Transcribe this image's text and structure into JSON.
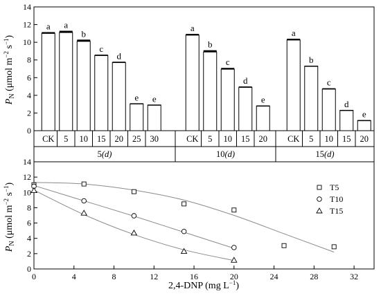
{
  "chart_data": [
    {
      "type": "bar",
      "ylabel": {
        "main": "P",
        "sub": "N",
        "units": "(μmol m",
        "exp1": "−2",
        "mid": " s",
        "exp2": "−1",
        "close": ")"
      },
      "ylim": [
        0,
        14
      ],
      "yticks": [
        0,
        2,
        4,
        6,
        8,
        10,
        12,
        14
      ],
      "groups": [
        {
          "label": "5",
          "unit": "(d)",
          "bars": [
            {
              "category": "CK",
              "value": 11.0,
              "error": 0.15,
              "letter": "a"
            },
            {
              "category": "5",
              "value": 11.1,
              "error": 0.2,
              "letter": "a"
            },
            {
              "category": "10",
              "value": 10.1,
              "error": 0.2,
              "letter": "b"
            },
            {
              "category": "15",
              "value": 8.5,
              "error": 0.1,
              "letter": "c"
            },
            {
              "category": "20",
              "value": 7.7,
              "error": 0.1,
              "letter": "d"
            },
            {
              "category": "25",
              "value": 3.05,
              "error": 0.05,
              "letter": "e"
            },
            {
              "category": "30",
              "value": 2.9,
              "error": 0.05,
              "letter": "e"
            }
          ]
        },
        {
          "label": "10",
          "unit": "(d)",
          "bars": [
            {
              "category": "CK",
              "value": 10.8,
              "error": 0.15,
              "letter": "a"
            },
            {
              "category": "5",
              "value": 8.9,
              "error": 0.2,
              "letter": "b"
            },
            {
              "category": "10",
              "value": 6.95,
              "error": 0.15,
              "letter": "c"
            },
            {
              "category": "15",
              "value": 4.9,
              "error": 0.1,
              "letter": "d"
            },
            {
              "category": "20",
              "value": 2.8,
              "error": 0.05,
              "letter": "e"
            }
          ]
        },
        {
          "label": "15",
          "unit": "(d)",
          "bars": [
            {
              "category": "CK",
              "value": 10.25,
              "error": 0.15,
              "letter": "a"
            },
            {
              "category": "5",
              "value": 7.3,
              "error": 0.05,
              "letter": "b"
            },
            {
              "category": "10",
              "value": 4.7,
              "error": 0.1,
              "letter": "c"
            },
            {
              "category": "15",
              "value": 2.3,
              "error": 0.05,
              "letter": "d"
            },
            {
              "category": "20",
              "value": 1.15,
              "error": 0.05,
              "letter": "e"
            }
          ]
        }
      ]
    },
    {
      "type": "scatter",
      "xlabel": {
        "text": "2,4-DNP",
        "units": "(mg L",
        "exp": "−1",
        "close": ")"
      },
      "ylabel": {
        "main": "P",
        "sub": "N",
        "units": "(μmol m",
        "exp1": "−2",
        "mid": " s",
        "exp2": "−1",
        "close": ")"
      },
      "xlim": [
        0,
        34
      ],
      "ylim": [
        0,
        14
      ],
      "xticks": [
        0,
        4,
        8,
        12,
        16,
        20,
        24,
        28,
        32
      ],
      "yticks": [
        0,
        2,
        4,
        6,
        8,
        10,
        12,
        14
      ],
      "legend_position": "right",
      "series": [
        {
          "name": "T5",
          "marker": "square",
          "x": [
            0,
            5,
            10,
            15,
            20,
            25,
            30
          ],
          "y": [
            11.0,
            11.1,
            10.1,
            8.5,
            7.7,
            3.05,
            2.9
          ],
          "fit": {
            "x": [
              0,
              5,
              10,
              15,
              20,
              25,
              30
            ],
            "y": [
              11.3,
              11.1,
              10.3,
              9.0,
              7.0,
              4.6,
              2.2
            ]
          }
        },
        {
          "name": "T10",
          "marker": "circle",
          "x": [
            0,
            5,
            10,
            15,
            20
          ],
          "y": [
            10.8,
            8.9,
            6.95,
            4.9,
            2.8
          ],
          "fit": {
            "x": [
              0,
              5,
              10,
              15,
              20
            ],
            "y": [
              10.9,
              8.9,
              6.9,
              4.8,
              2.7
            ]
          }
        },
        {
          "name": "T15",
          "marker": "triangle",
          "x": [
            0,
            5,
            10,
            15,
            20
          ],
          "y": [
            10.25,
            7.3,
            4.7,
            2.3,
            1.15
          ],
          "fit": {
            "x": [
              0,
              5,
              10,
              15,
              20
            ],
            "y": [
              10.3,
              7.1,
              4.5,
              2.5,
              1.1
            ]
          }
        }
      ]
    }
  ]
}
